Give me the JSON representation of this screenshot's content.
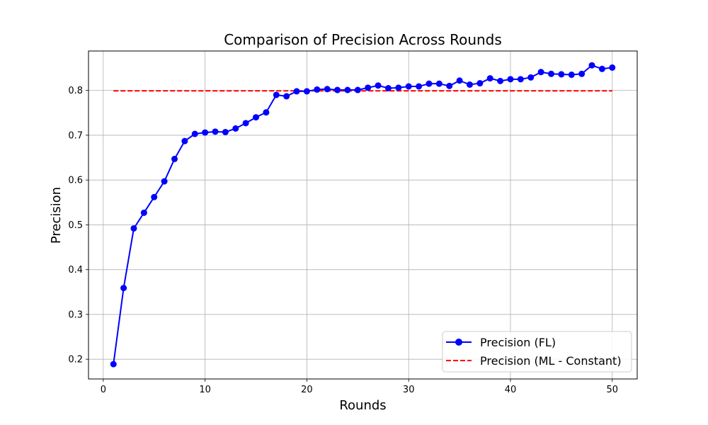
{
  "chart_data": {
    "type": "line",
    "title": "Comparison of Precision Across Rounds",
    "xlabel": "Rounds",
    "ylabel": "Precision",
    "xlim": [
      -1.45,
      52.45
    ],
    "ylim": [
      0.156,
      0.888
    ],
    "xticks": [
      0,
      10,
      20,
      30,
      40,
      50
    ],
    "yticks": [
      0.2,
      0.3,
      0.4,
      0.5,
      0.6,
      0.7,
      0.8
    ],
    "grid": true,
    "legend_position": "lower-right",
    "series": [
      {
        "name": "Precision (FL)",
        "color": "#0000ff",
        "marker": "circle",
        "linestyle": "solid",
        "x": [
          1,
          2,
          3,
          4,
          5,
          6,
          7,
          8,
          9,
          10,
          11,
          12,
          13,
          14,
          15,
          16,
          17,
          18,
          19,
          20,
          21,
          22,
          23,
          24,
          25,
          26,
          27,
          28,
          29,
          30,
          31,
          32,
          33,
          34,
          35,
          36,
          37,
          38,
          39,
          40,
          41,
          42,
          43,
          44,
          45,
          46,
          47,
          48,
          49,
          50
        ],
        "y": [
          0.189,
          0.359,
          0.492,
          0.527,
          0.562,
          0.597,
          0.647,
          0.687,
          0.703,
          0.706,
          0.708,
          0.707,
          0.715,
          0.727,
          0.74,
          0.751,
          0.79,
          0.787,
          0.798,
          0.798,
          0.802,
          0.803,
          0.801,
          0.801,
          0.801,
          0.806,
          0.811,
          0.805,
          0.806,
          0.809,
          0.809,
          0.815,
          0.815,
          0.81,
          0.822,
          0.813,
          0.816,
          0.827,
          0.821,
          0.825,
          0.825,
          0.829,
          0.841,
          0.837,
          0.836,
          0.835,
          0.837,
          0.856,
          0.848,
          0.851
        ]
      },
      {
        "name": "Precision (ML - Constant)",
        "color": "#ff0000",
        "linestyle": "dashed",
        "x": [
          1,
          50
        ],
        "y": [
          0.799,
          0.799
        ]
      }
    ]
  }
}
